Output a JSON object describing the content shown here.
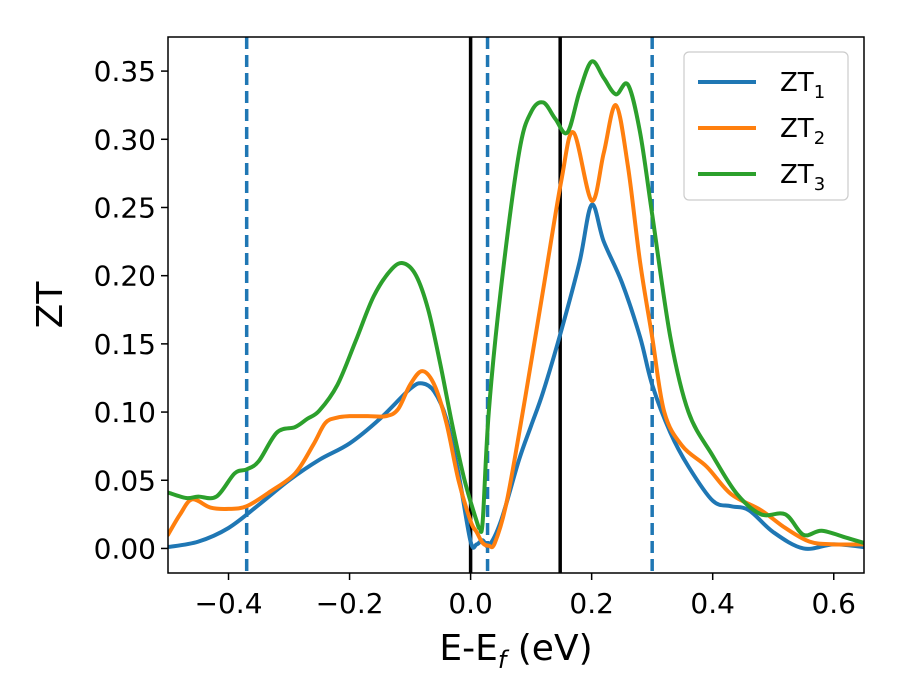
{
  "chart_data": {
    "type": "line",
    "xlabel": "E-E",
    "xlabel_sub": "f",
    "xlabel_unit": " (eV)",
    "ylabel": "ZT",
    "xlim": [
      -0.5,
      0.65
    ],
    "ylim": [
      -0.018,
      0.375
    ],
    "xticks": [
      -0.4,
      -0.2,
      0.0,
      0.2,
      0.4,
      0.6
    ],
    "xtick_labels": [
      "−0.4",
      "−0.2",
      "0.0",
      "0.2",
      "0.4",
      "0.6"
    ],
    "yticks": [
      0.0,
      0.05,
      0.1,
      0.15,
      0.2,
      0.25,
      0.3,
      0.35
    ],
    "ytick_labels": [
      "0.00",
      "0.05",
      "0.10",
      "0.15",
      "0.20",
      "0.25",
      "0.30",
      "0.35"
    ],
    "grid": false,
    "legend_position": "top-right",
    "vlines_dashed": [
      -0.37,
      0.028,
      0.3
    ],
    "vlines_solid": [
      0.0,
      0.148
    ],
    "vline_dashed_color": "#1f77b4",
    "vline_solid_color": "#000000",
    "series": [
      {
        "name": "ZT",
        "name_sub": "1",
        "color": "#1f77b4",
        "x": [
          -0.5,
          -0.45,
          -0.4,
          -0.35,
          -0.3,
          -0.25,
          -0.2,
          -0.15,
          -0.1,
          -0.08,
          -0.06,
          -0.04,
          -0.02,
          0.0,
          0.01,
          0.02,
          0.03,
          0.05,
          0.08,
          0.1,
          0.12,
          0.15,
          0.18,
          0.2,
          0.22,
          0.25,
          0.28,
          0.3,
          0.33,
          0.36,
          0.4,
          0.43,
          0.46,
          0.5,
          0.55,
          0.6,
          0.65
        ],
        "y": [
          0.001,
          0.005,
          0.015,
          0.032,
          0.05,
          0.065,
          0.077,
          0.095,
          0.117,
          0.121,
          0.115,
          0.095,
          0.055,
          0.005,
          0.003,
          0.006,
          0.002,
          0.02,
          0.065,
          0.09,
          0.115,
          0.16,
          0.21,
          0.252,
          0.225,
          0.195,
          0.155,
          0.12,
          0.085,
          0.06,
          0.035,
          0.031,
          0.028,
          0.012,
          0.0,
          0.003,
          0.001
        ]
      },
      {
        "name": "ZT",
        "name_sub": "2",
        "color": "#ff7f0e",
        "x": [
          -0.5,
          -0.48,
          -0.46,
          -0.43,
          -0.4,
          -0.37,
          -0.33,
          -0.29,
          -0.26,
          -0.24,
          -0.22,
          -0.2,
          -0.17,
          -0.14,
          -0.12,
          -0.1,
          -0.08,
          -0.06,
          -0.04,
          -0.02,
          0.0,
          0.01,
          0.02,
          0.03,
          0.04,
          0.06,
          0.09,
          0.12,
          0.15,
          0.17,
          0.2,
          0.22,
          0.24,
          0.26,
          0.28,
          0.3,
          0.32,
          0.35,
          0.39,
          0.43,
          0.48,
          0.52,
          0.56,
          0.6,
          0.65
        ],
        "y": [
          0.01,
          0.025,
          0.036,
          0.03,
          0.029,
          0.031,
          0.042,
          0.055,
          0.076,
          0.092,
          0.096,
          0.097,
          0.097,
          0.097,
          0.102,
          0.12,
          0.13,
          0.12,
          0.092,
          0.05,
          0.02,
          0.012,
          0.004,
          0.002,
          0.004,
          0.035,
          0.11,
          0.19,
          0.27,
          0.305,
          0.255,
          0.29,
          0.325,
          0.28,
          0.21,
          0.155,
          0.1,
          0.075,
          0.06,
          0.04,
          0.028,
          0.015,
          0.005,
          0.003,
          0.003
        ]
      },
      {
        "name": "ZT",
        "name_sub": "3",
        "color": "#2ca02c",
        "x": [
          -0.5,
          -0.47,
          -0.45,
          -0.42,
          -0.39,
          -0.37,
          -0.35,
          -0.32,
          -0.29,
          -0.27,
          -0.25,
          -0.22,
          -0.19,
          -0.16,
          -0.13,
          -0.11,
          -0.09,
          -0.07,
          -0.05,
          -0.03,
          -0.01,
          0.01,
          0.015,
          0.02,
          0.03,
          0.05,
          0.08,
          0.1,
          0.12,
          0.14,
          0.16,
          0.18,
          0.2,
          0.22,
          0.24,
          0.26,
          0.28,
          0.3,
          0.33,
          0.36,
          0.4,
          0.44,
          0.48,
          0.52,
          0.55,
          0.58,
          0.62,
          0.65
        ],
        "y": [
          0.041,
          0.037,
          0.038,
          0.038,
          0.055,
          0.058,
          0.064,
          0.085,
          0.089,
          0.095,
          0.101,
          0.12,
          0.152,
          0.185,
          0.205,
          0.209,
          0.2,
          0.175,
          0.135,
          0.09,
          0.05,
          0.02,
          0.015,
          0.02,
          0.1,
          0.19,
          0.29,
          0.32,
          0.327,
          0.315,
          0.305,
          0.335,
          0.357,
          0.345,
          0.333,
          0.34,
          0.305,
          0.245,
          0.155,
          0.1,
          0.068,
          0.04,
          0.025,
          0.025,
          0.01,
          0.013,
          0.008,
          0.004
        ]
      }
    ]
  }
}
